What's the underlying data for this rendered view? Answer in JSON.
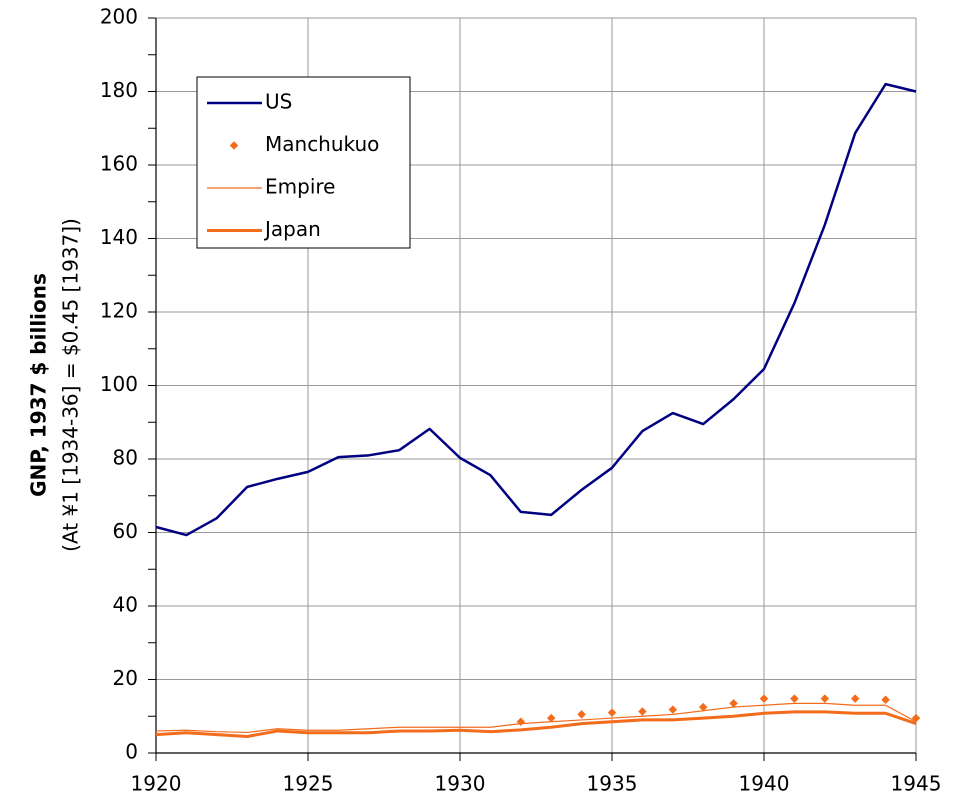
{
  "chart_data": {
    "type": "line",
    "y_label": "GNP, 1937 $ billions",
    "y_sublabel": "(At ¥1 [1934-36] = $0.45 [1937])",
    "x": [
      1920,
      1921,
      1922,
      1923,
      1924,
      1925,
      1926,
      1927,
      1928,
      1929,
      1930,
      1931,
      1932,
      1933,
      1934,
      1935,
      1936,
      1937,
      1938,
      1939,
      1940,
      1941,
      1942,
      1943,
      1944,
      1945
    ],
    "series": [
      {
        "name": "US",
        "color": "#000080",
        "style": "line",
        "width": 2.5,
        "values": [
          61.5,
          59.3,
          63.9,
          72.4,
          74.6,
          76.5,
          80.5,
          81,
          82.4,
          88.2,
          80.3,
          75.6,
          65.6,
          64.8,
          71.6,
          77.6,
          87.6,
          92.5,
          89.5,
          96.3,
          104.5,
          122.4,
          143.7,
          168.7,
          182,
          180
        ]
      },
      {
        "name": "Manchukuo",
        "color": "#f26c1c",
        "style": "marker",
        "width": 0,
        "values": [
          null,
          null,
          null,
          null,
          null,
          null,
          null,
          null,
          null,
          null,
          null,
          null,
          8.5,
          9.5,
          10.5,
          11,
          11.3,
          11.8,
          12.5,
          13.5,
          14.8,
          14.8,
          14.8,
          14.8,
          14.5,
          9.5
        ]
      },
      {
        "name": "Empire",
        "color": "#f26c1c",
        "style": "line",
        "width": 1.2,
        "values": [
          6,
          6.2,
          5.8,
          5.6,
          6.6,
          6.2,
          6.2,
          6.6,
          7,
          7,
          7,
          7,
          8,
          8.5,
          9,
          9.5,
          10,
          10.5,
          11.5,
          12.5,
          13,
          13.5,
          13.5,
          13,
          13,
          8.5
        ]
      },
      {
        "name": "Japan",
        "color": "#f26c1c",
        "style": "line",
        "width": 3,
        "values": [
          5,
          5.5,
          5,
          4.5,
          6,
          5.5,
          5.5,
          5.5,
          6,
          6,
          6.2,
          5.8,
          6.3,
          7,
          8,
          8.5,
          9,
          9,
          9.5,
          10,
          10.8,
          11.2,
          11.2,
          10.8,
          10.8,
          8
        ]
      }
    ],
    "xlim": [
      1920,
      1945
    ],
    "xticks": [
      1920,
      1925,
      1930,
      1935,
      1940,
      1945
    ],
    "ylim": [
      0,
      200
    ],
    "yticks": [
      0,
      20,
      40,
      60,
      80,
      100,
      120,
      140,
      160,
      180,
      200
    ],
    "yminorticks": [
      10,
      30,
      50,
      70,
      90,
      110,
      130,
      150,
      170,
      190
    ],
    "grid": true,
    "legend": "upper left"
  }
}
